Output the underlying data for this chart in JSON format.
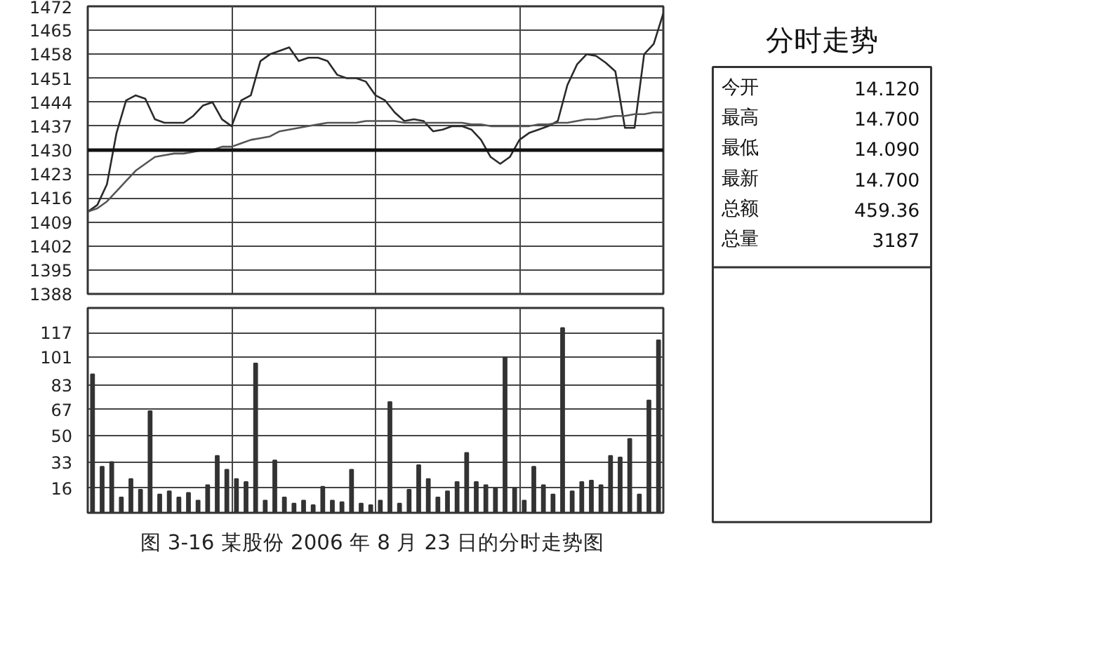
{
  "chart_data": [
    {
      "type": "line",
      "categories": [
        null,
        null,
        null,
        null,
        null,
        null,
        null,
        null,
        null,
        null,
        null,
        null,
        null,
        null,
        null,
        null,
        null,
        null,
        null,
        null,
        null,
        null,
        null,
        null,
        null,
        null,
        null,
        null,
        null,
        null,
        null,
        null,
        null,
        null,
        null,
        null,
        null,
        null,
        null,
        null,
        null,
        null,
        null,
        null,
        null,
        null,
        null,
        null,
        null,
        null,
        null,
        null,
        null,
        null,
        null,
        null,
        null,
        null,
        null,
        null,
        null
      ],
      "ylim": [
        1388,
        1472
      ],
      "yticks": [
        1388,
        1395,
        1402,
        1409,
        1416,
        1423,
        1430,
        1437,
        1444,
        1451,
        1458,
        1465,
        1472
      ],
      "grid": true,
      "tick_labels": "y",
      "ref_lines": [
        {
          "axis": "y",
          "value": 1430,
          "color": "#111111"
        }
      ],
      "series": [
        {
          "color": "#2a2a2a",
          "values": [
            1412,
            1414,
            1420,
            1435,
            1444.5,
            1446,
            1445,
            1439,
            1438,
            1438,
            1438,
            1440,
            1443,
            1444,
            1439,
            1437,
            1444.5,
            1446,
            1456,
            1458,
            1459,
            1460,
            1456,
            1457,
            1457,
            1456,
            1452,
            1451,
            1451,
            1450,
            1446,
            1444.5,
            1441,
            1438.5,
            1439,
            1438.5,
            1435.5,
            1436,
            1437,
            1437,
            1436,
            1433,
            1428,
            1426,
            1428,
            1433,
            1435,
            1436,
            1437,
            1438.5,
            1449,
            1455,
            1458,
            1457.5,
            1455.5,
            1453,
            1436.5,
            1436.5,
            1458,
            1461,
            1470
          ]
        },
        {
          "color": "#555555",
          "values": [
            1412,
            1413,
            1415,
            1418,
            1421,
            1424,
            1426,
            1428,
            1428.5,
            1429,
            1429,
            1429.5,
            1430,
            1430,
            1431,
            1431,
            1432,
            1433,
            1433.5,
            1434,
            1435.5,
            1436,
            1436.5,
            1437,
            1437.5,
            1438,
            1438,
            1438,
            1438,
            1438.5,
            1438.5,
            1438.5,
            1438.5,
            1438,
            1438,
            1438,
            1438,
            1438,
            1438,
            1438,
            1437.5,
            1437.5,
            1437,
            1437,
            1437,
            1437,
            1437,
            1437.5,
            1437.5,
            1438,
            1438,
            1438.5,
            1439,
            1439,
            1439.5,
            1440,
            1440,
            1440.5,
            1440.5,
            1441,
            1441
          ]
        }
      ]
    },
    {
      "type": "bar",
      "categories": [
        null,
        null,
        null,
        null,
        null,
        null,
        null,
        null,
        null,
        null,
        null,
        null,
        null,
        null,
        null,
        null,
        null,
        null,
        null,
        null,
        null,
        null,
        null,
        null,
        null,
        null,
        null,
        null,
        null,
        null,
        null,
        null,
        null,
        null,
        null,
        null,
        null,
        null,
        null,
        null,
        null,
        null,
        null,
        null,
        null,
        null,
        null,
        null,
        null,
        null,
        null,
        null,
        null,
        null,
        null,
        null,
        null,
        null,
        null,
        null
      ],
      "ylim": [
        0,
        133
      ],
      "yticks": [
        16,
        33,
        50,
        67,
        83,
        101,
        117
      ],
      "grid": true,
      "tick_labels": "y",
      "annotations": [
        "图 3-16  某股份 2006 年 8 月 23 日的分时走势图"
      ],
      "series": [
        {
          "color": "#333333",
          "values": [
            90,
            30,
            33,
            10,
            22,
            15,
            66,
            12,
            14,
            10,
            13,
            8,
            18,
            37,
            28,
            22,
            20,
            97,
            8,
            34,
            10,
            6,
            8,
            5,
            17,
            8,
            7,
            28,
            6,
            5,
            8,
            72,
            6,
            15,
            31,
            22,
            10,
            14,
            20,
            39,
            20,
            18,
            16,
            101,
            16,
            8,
            30,
            18,
            12,
            120,
            14,
            20,
            21,
            18,
            37,
            36,
            48,
            12,
            73,
            112
          ]
        }
      ]
    },
    {
      "type": "other",
      "title": "分时走势",
      "annotations": [
        "今开",
        "14.120",
        "最高",
        "14.700",
        "最低",
        "14.090",
        "最新",
        "14.700",
        "总额",
        "459.36",
        "总量",
        "3187"
      ]
    }
  ]
}
